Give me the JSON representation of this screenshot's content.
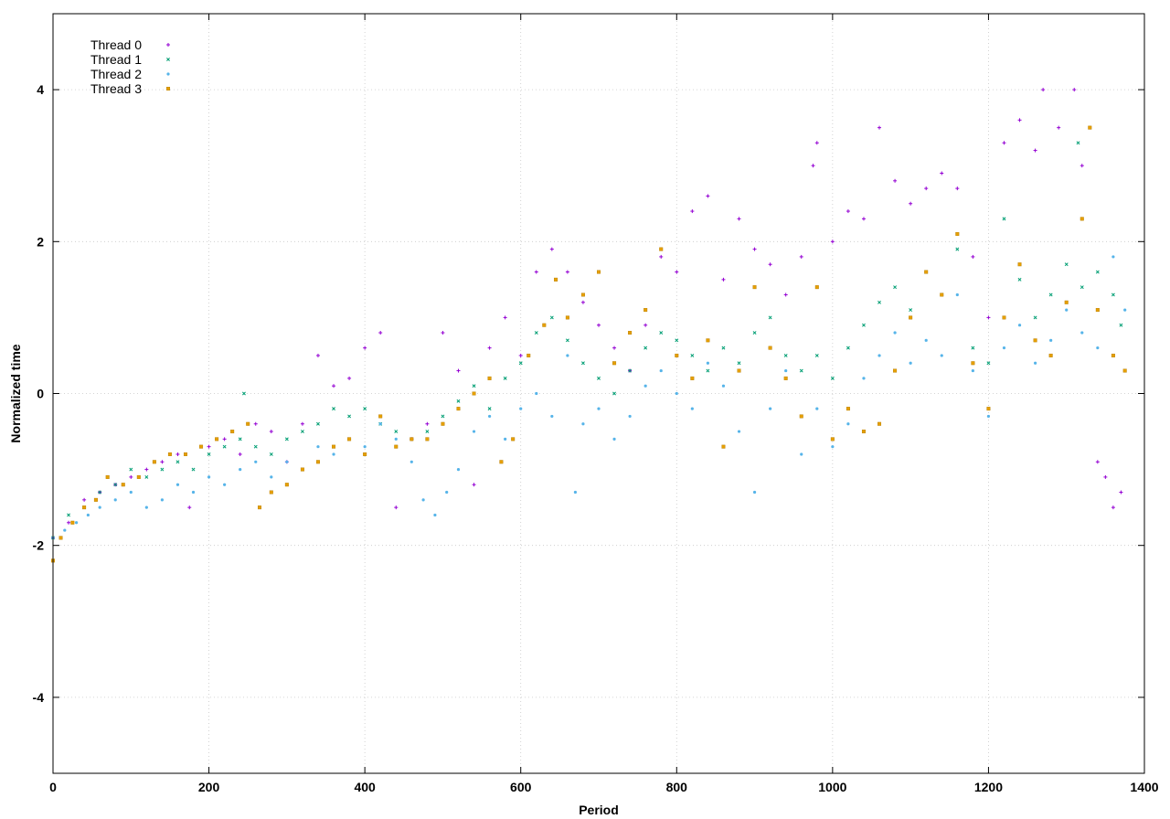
{
  "chart_data": {
    "type": "scatter",
    "title": "",
    "xlabel": "Period",
    "ylabel": "Normalized time",
    "xlim": [
      0,
      1400
    ],
    "ylim": [
      -5,
      5
    ],
    "x_ticks": [
      0,
      200,
      400,
      600,
      800,
      1000,
      1200,
      1400
    ],
    "y_ticks": [
      -4,
      -2,
      0,
      2,
      4
    ],
    "grid": true,
    "legend_position": "top-left",
    "series": [
      {
        "name": "Thread 0",
        "color": "#9400d3",
        "marker": "plus",
        "points": [
          [
            0,
            -1.9
          ],
          [
            20,
            -1.7
          ],
          [
            40,
            -1.4
          ],
          [
            60,
            -1.3
          ],
          [
            80,
            -1.2
          ],
          [
            100,
            -1.1
          ],
          [
            120,
            -1.0
          ],
          [
            140,
            -0.9
          ],
          [
            160,
            -0.8
          ],
          [
            175,
            -1.5
          ],
          [
            200,
            -0.7
          ],
          [
            220,
            -0.6
          ],
          [
            240,
            -0.8
          ],
          [
            260,
            -0.4
          ],
          [
            280,
            -0.5
          ],
          [
            300,
            -0.9
          ],
          [
            320,
            -0.4
          ],
          [
            340,
            0.5
          ],
          [
            360,
            0.1
          ],
          [
            380,
            0.2
          ],
          [
            400,
            0.6
          ],
          [
            420,
            0.8
          ],
          [
            440,
            -1.5
          ],
          [
            460,
            -0.6
          ],
          [
            480,
            -0.4
          ],
          [
            500,
            0.8
          ],
          [
            520,
            0.3
          ],
          [
            540,
            -1.2
          ],
          [
            560,
            0.6
          ],
          [
            580,
            1.0
          ],
          [
            600,
            0.5
          ],
          [
            620,
            1.6
          ],
          [
            640,
            1.9
          ],
          [
            660,
            1.6
          ],
          [
            680,
            1.2
          ],
          [
            700,
            0.9
          ],
          [
            720,
            0.6
          ],
          [
            740,
            0.3
          ],
          [
            760,
            0.9
          ],
          [
            780,
            1.8
          ],
          [
            800,
            1.6
          ],
          [
            820,
            2.4
          ],
          [
            840,
            2.6
          ],
          [
            860,
            1.5
          ],
          [
            880,
            2.3
          ],
          [
            900,
            1.9
          ],
          [
            920,
            1.7
          ],
          [
            940,
            1.3
          ],
          [
            960,
            1.8
          ],
          [
            975,
            3.0
          ],
          [
            980,
            3.3
          ],
          [
            1000,
            2.0
          ],
          [
            1020,
            2.4
          ],
          [
            1040,
            2.3
          ],
          [
            1060,
            3.5
          ],
          [
            1080,
            2.8
          ],
          [
            1100,
            2.5
          ],
          [
            1120,
            2.7
          ],
          [
            1140,
            2.9
          ],
          [
            1160,
            2.7
          ],
          [
            1180,
            1.8
          ],
          [
            1200,
            1.0
          ],
          [
            1220,
            3.3
          ],
          [
            1240,
            3.6
          ],
          [
            1260,
            3.2
          ],
          [
            1270,
            4.0
          ],
          [
            1290,
            3.5
          ],
          [
            1310,
            4.0
          ],
          [
            1320,
            3.0
          ],
          [
            1340,
            -0.9
          ],
          [
            1350,
            -1.1
          ],
          [
            1360,
            -1.5
          ],
          [
            1370,
            -1.3
          ]
        ]
      },
      {
        "name": "Thread 1",
        "color": "#009e73",
        "marker": "x",
        "points": [
          [
            0,
            -1.9
          ],
          [
            20,
            -1.6
          ],
          [
            40,
            -1.5
          ],
          [
            60,
            -1.3
          ],
          [
            80,
            -1.2
          ],
          [
            100,
            -1.0
          ],
          [
            120,
            -1.1
          ],
          [
            140,
            -1.0
          ],
          [
            160,
            -0.9
          ],
          [
            180,
            -1.0
          ],
          [
            200,
            -0.8
          ],
          [
            220,
            -0.7
          ],
          [
            240,
            -0.6
          ],
          [
            245,
            0.0
          ],
          [
            260,
            -0.7
          ],
          [
            280,
            -0.8
          ],
          [
            300,
            -0.6
          ],
          [
            320,
            -0.5
          ],
          [
            340,
            -0.4
          ],
          [
            360,
            -0.2
          ],
          [
            380,
            -0.3
          ],
          [
            400,
            -0.2
          ],
          [
            420,
            -0.4
          ],
          [
            440,
            -0.5
          ],
          [
            460,
            -0.6
          ],
          [
            480,
            -0.5
          ],
          [
            500,
            -0.3
          ],
          [
            520,
            -0.1
          ],
          [
            540,
            0.1
          ],
          [
            560,
            -0.2
          ],
          [
            580,
            0.2
          ],
          [
            600,
            0.4
          ],
          [
            620,
            0.8
          ],
          [
            640,
            1.0
          ],
          [
            660,
            0.7
          ],
          [
            680,
            0.4
          ],
          [
            700,
            0.2
          ],
          [
            720,
            0.0
          ],
          [
            740,
            0.3
          ],
          [
            760,
            0.6
          ],
          [
            780,
            0.8
          ],
          [
            800,
            0.7
          ],
          [
            820,
            0.5
          ],
          [
            840,
            0.3
          ],
          [
            860,
            0.6
          ],
          [
            880,
            0.4
          ],
          [
            900,
            0.8
          ],
          [
            920,
            1.0
          ],
          [
            940,
            0.5
          ],
          [
            960,
            0.3
          ],
          [
            980,
            0.5
          ],
          [
            1000,
            0.2
          ],
          [
            1020,
            0.6
          ],
          [
            1040,
            0.9
          ],
          [
            1060,
            1.2
          ],
          [
            1080,
            1.4
          ],
          [
            1100,
            1.1
          ],
          [
            1120,
            1.6
          ],
          [
            1140,
            1.3
          ],
          [
            1160,
            1.9
          ],
          [
            1180,
            0.6
          ],
          [
            1200,
            0.4
          ],
          [
            1220,
            2.3
          ],
          [
            1240,
            1.5
          ],
          [
            1260,
            1.0
          ],
          [
            1280,
            1.3
          ],
          [
            1300,
            1.7
          ],
          [
            1315,
            3.3
          ],
          [
            1320,
            1.4
          ],
          [
            1340,
            1.6
          ],
          [
            1360,
            1.3
          ],
          [
            1370,
            0.9
          ]
        ]
      },
      {
        "name": "Thread 2",
        "color": "#56b4e9",
        "marker": "star",
        "points": [
          [
            0,
            -1.9
          ],
          [
            15,
            -1.8
          ],
          [
            30,
            -1.7
          ],
          [
            45,
            -1.6
          ],
          [
            60,
            -1.5
          ],
          [
            80,
            -1.4
          ],
          [
            100,
            -1.3
          ],
          [
            120,
            -1.5
          ],
          [
            140,
            -1.4
          ],
          [
            160,
            -1.2
          ],
          [
            180,
            -1.3
          ],
          [
            200,
            -1.1
          ],
          [
            220,
            -1.2
          ],
          [
            240,
            -1.0
          ],
          [
            260,
            -0.9
          ],
          [
            280,
            -1.1
          ],
          [
            300,
            -0.9
          ],
          [
            320,
            -1.0
          ],
          [
            340,
            -0.7
          ],
          [
            360,
            -0.8
          ],
          [
            380,
            -0.6
          ],
          [
            400,
            -0.7
          ],
          [
            420,
            -0.4
          ],
          [
            440,
            -0.6
          ],
          [
            460,
            -0.9
          ],
          [
            475,
            -1.4
          ],
          [
            490,
            -1.6
          ],
          [
            505,
            -1.3
          ],
          [
            520,
            -1.0
          ],
          [
            540,
            -0.5
          ],
          [
            560,
            -0.3
          ],
          [
            580,
            -0.6
          ],
          [
            600,
            -0.2
          ],
          [
            620,
            0.0
          ],
          [
            640,
            -0.3
          ],
          [
            660,
            0.5
          ],
          [
            670,
            -1.3
          ],
          [
            680,
            -0.4
          ],
          [
            700,
            -0.2
          ],
          [
            720,
            -0.6
          ],
          [
            740,
            -0.3
          ],
          [
            760,
            0.1
          ],
          [
            780,
            0.3
          ],
          [
            800,
            0.0
          ],
          [
            820,
            -0.2
          ],
          [
            840,
            0.4
          ],
          [
            860,
            0.1
          ],
          [
            880,
            -0.5
          ],
          [
            900,
            -1.3
          ],
          [
            920,
            -0.2
          ],
          [
            940,
            0.3
          ],
          [
            960,
            -0.8
          ],
          [
            980,
            -0.2
          ],
          [
            1000,
            -0.7
          ],
          [
            1020,
            -0.4
          ],
          [
            1040,
            0.2
          ],
          [
            1060,
            0.5
          ],
          [
            1080,
            0.8
          ],
          [
            1100,
            0.4
          ],
          [
            1120,
            0.7
          ],
          [
            1140,
            0.5
          ],
          [
            1160,
            1.3
          ],
          [
            1180,
            0.3
          ],
          [
            1200,
            -0.3
          ],
          [
            1220,
            0.6
          ],
          [
            1240,
            0.9
          ],
          [
            1260,
            0.4
          ],
          [
            1280,
            0.7
          ],
          [
            1300,
            1.1
          ],
          [
            1320,
            0.8
          ],
          [
            1340,
            0.6
          ],
          [
            1360,
            1.8
          ],
          [
            1375,
            1.1
          ]
        ]
      },
      {
        "name": "Thread 3",
        "color": "#e69f00",
        "marker": "box",
        "points": [
          [
            0,
            -2.2
          ],
          [
            10,
            -1.9
          ],
          [
            25,
            -1.7
          ],
          [
            40,
            -1.5
          ],
          [
            55,
            -1.4
          ],
          [
            70,
            -1.1
          ],
          [
            90,
            -1.2
          ],
          [
            110,
            -1.1
          ],
          [
            130,
            -0.9
          ],
          [
            150,
            -0.8
          ],
          [
            170,
            -0.8
          ],
          [
            190,
            -0.7
          ],
          [
            210,
            -0.6
          ],
          [
            230,
            -0.5
          ],
          [
            250,
            -0.4
          ],
          [
            265,
            -1.5
          ],
          [
            280,
            -1.3
          ],
          [
            300,
            -1.2
          ],
          [
            320,
            -1.0
          ],
          [
            340,
            -0.9
          ],
          [
            360,
            -0.7
          ],
          [
            380,
            -0.6
          ],
          [
            400,
            -0.8
          ],
          [
            420,
            -0.3
          ],
          [
            440,
            -0.7
          ],
          [
            460,
            -0.6
          ],
          [
            480,
            -0.6
          ],
          [
            500,
            -0.4
          ],
          [
            520,
            -0.2
          ],
          [
            540,
            0.0
          ],
          [
            560,
            0.2
          ],
          [
            575,
            -0.9
          ],
          [
            590,
            -0.6
          ],
          [
            610,
            0.5
          ],
          [
            630,
            0.9
          ],
          [
            645,
            1.5
          ],
          [
            660,
            1.0
          ],
          [
            680,
            1.3
          ],
          [
            700,
            1.6
          ],
          [
            720,
            0.4
          ],
          [
            740,
            0.8
          ],
          [
            760,
            1.1
          ],
          [
            780,
            1.9
          ],
          [
            800,
            0.5
          ],
          [
            820,
            0.2
          ],
          [
            840,
            0.7
          ],
          [
            860,
            -0.7
          ],
          [
            880,
            0.3
          ],
          [
            900,
            1.4
          ],
          [
            920,
            0.6
          ],
          [
            940,
            0.2
          ],
          [
            960,
            -0.3
          ],
          [
            980,
            1.4
          ],
          [
            1000,
            -0.6
          ],
          [
            1020,
            -0.2
          ],
          [
            1040,
            -0.5
          ],
          [
            1060,
            -0.4
          ],
          [
            1080,
            0.3
          ],
          [
            1100,
            1.0
          ],
          [
            1120,
            1.6
          ],
          [
            1140,
            1.3
          ],
          [
            1160,
            2.1
          ],
          [
            1180,
            0.4
          ],
          [
            1200,
            -0.2
          ],
          [
            1220,
            1.0
          ],
          [
            1240,
            1.7
          ],
          [
            1260,
            0.7
          ],
          [
            1280,
            0.5
          ],
          [
            1300,
            1.2
          ],
          [
            1320,
            2.3
          ],
          [
            1330,
            3.5
          ],
          [
            1340,
            1.1
          ],
          [
            1360,
            0.5
          ],
          [
            1375,
            0.3
          ]
        ]
      }
    ]
  }
}
